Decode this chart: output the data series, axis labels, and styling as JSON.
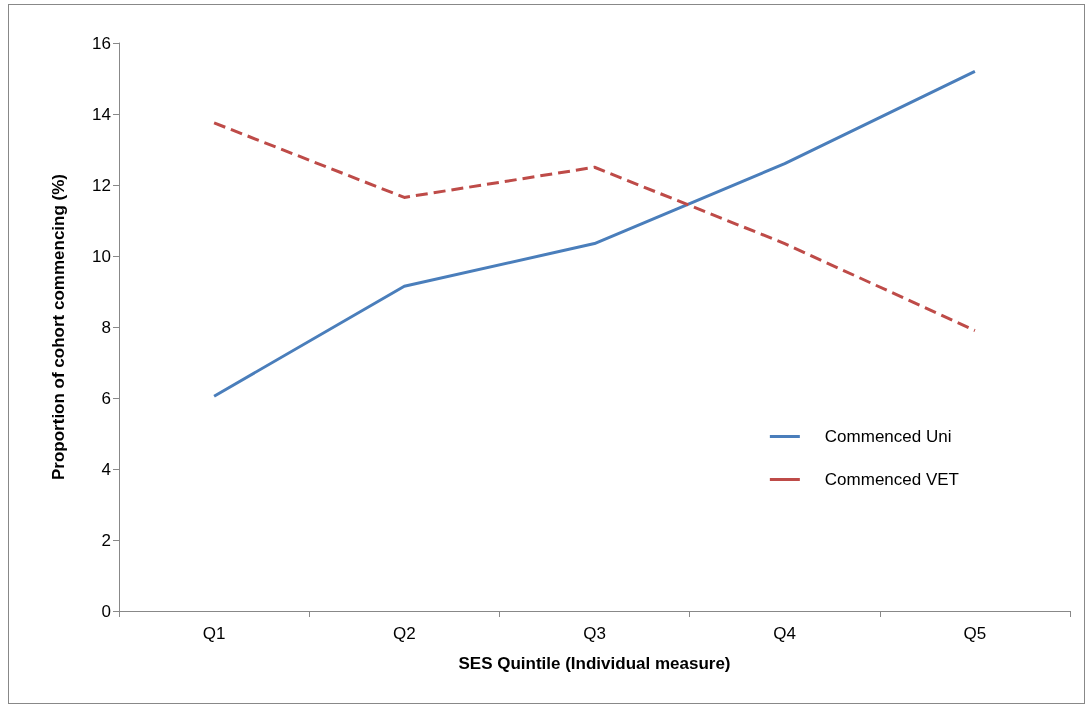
{
  "chart_data": {
    "type": "line",
    "xlabel": "SES Quintile (Individual measure)",
    "ylabel": "Proportion of cohort commencing (%)",
    "categories": [
      "Q1",
      "Q2",
      "Q3",
      "Q4",
      "Q5"
    ],
    "series": [
      {
        "name": "Commenced Uni",
        "color": "#4a7ebb",
        "line_style": "solid",
        "values": [
          6.05,
          9.15,
          10.35,
          12.6,
          15.2
        ]
      },
      {
        "name": "Commenced VET",
        "color": "#be4b48",
        "line_style": "dashed",
        "values": [
          13.75,
          11.65,
          12.5,
          10.35,
          7.9
        ]
      }
    ],
    "ylim": [
      0,
      16
    ],
    "yticks": [
      0,
      2,
      4,
      6,
      8,
      10,
      12,
      14,
      16
    ],
    "grid": false,
    "legend": "right",
    "marker": "none"
  }
}
